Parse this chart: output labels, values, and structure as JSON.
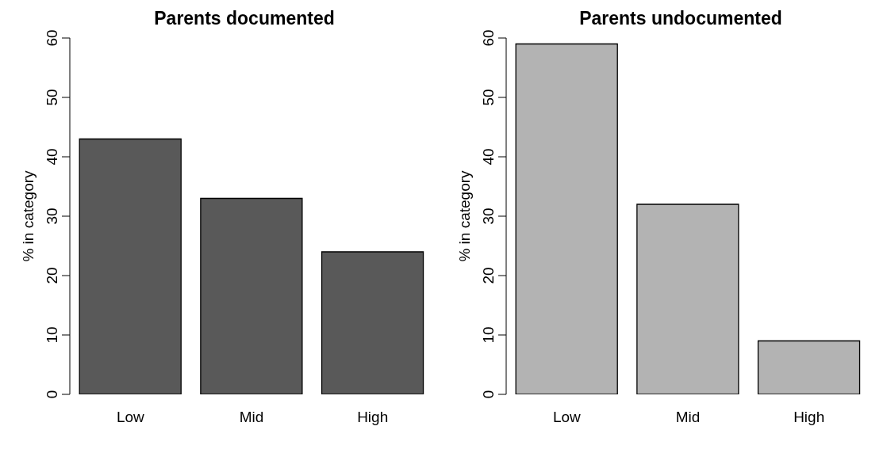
{
  "chart_data": [
    {
      "type": "bar",
      "title": "Parents documented",
      "ylabel": "% in category",
      "categories": [
        "Low",
        "Mid",
        "High"
      ],
      "values": [
        43,
        33,
        24
      ],
      "color": "#595959",
      "ylim": [
        0,
        60
      ],
      "yticks": [
        0,
        10,
        20,
        30,
        40,
        50,
        60
      ],
      "grid": false,
      "legend": false
    },
    {
      "type": "bar",
      "title": "Parents undocumented",
      "ylabel": "% in category",
      "categories": [
        "Low",
        "Mid",
        "High"
      ],
      "values": [
        59,
        32,
        9
      ],
      "color": "#b3b3b3",
      "ylim": [
        0,
        60
      ],
      "yticks": [
        0,
        10,
        20,
        30,
        40,
        50,
        60
      ],
      "grid": false,
      "legend": false
    }
  ]
}
